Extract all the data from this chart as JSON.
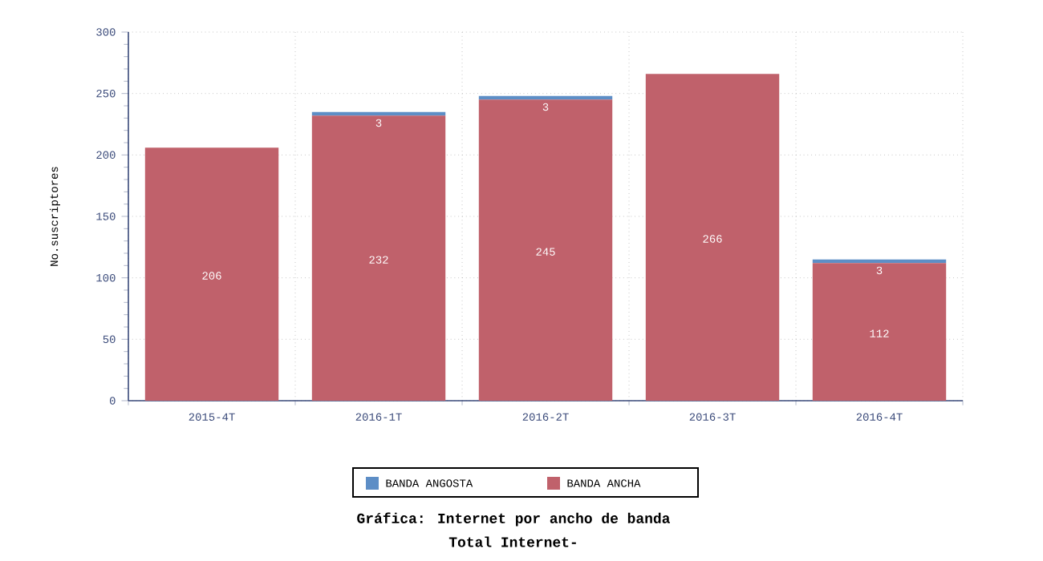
{
  "chart_data": {
    "type": "bar",
    "stacked": true,
    "title": "Gráfica: Internet por ancho de banda",
    "subtitle": "Total Internet-",
    "ylabel": "No.suscriptores",
    "categories": [
      "2015-4T",
      "2016-1T",
      "2016-2T",
      "2016-3T",
      "2016-4T"
    ],
    "series": [
      {
        "name": "BANDA ANCHA",
        "color": "#c0616b",
        "values": [
          206,
          232,
          245,
          266,
          112
        ],
        "value_labels": [
          "206",
          "232",
          "245",
          "266",
          "112"
        ]
      },
      {
        "name": "BANDA ANGOSTA",
        "color": "#5d8ec6",
        "values": [
          null,
          3,
          3,
          null,
          3
        ],
        "value_labels": [
          null,
          "3",
          "3",
          null,
          "3"
        ]
      }
    ],
    "ylim": [
      0,
      300
    ],
    "yticks": [
      0,
      50,
      100,
      150,
      200,
      250,
      300
    ],
    "grid": true,
    "legend": "bottom"
  }
}
